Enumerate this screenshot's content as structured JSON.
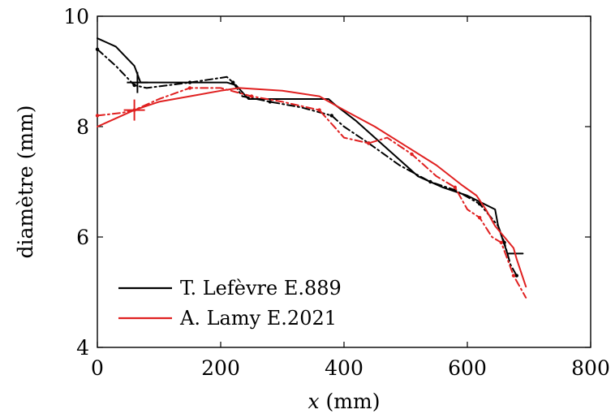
{
  "chart_data": {
    "type": "line",
    "title": "",
    "xlabel_var": "x",
    "xlabel_unit": " (mm)",
    "ylabel": "diamètre (mm)",
    "xlim": [
      0,
      800
    ],
    "ylim": [
      4,
      10
    ],
    "xticks": [
      0,
      200,
      400,
      600,
      800
    ],
    "yticks": [
      4,
      6,
      8,
      10
    ],
    "xtick_labels": [
      "0",
      "200",
      "400",
      "600",
      "800"
    ],
    "ytick_labels": [
      "4",
      "6",
      "8",
      "10"
    ],
    "grid": false,
    "legend": {
      "placement": "bottom-left"
    },
    "series": [
      {
        "name": "T. Lefèvre E.889",
        "color": "#000000",
        "style": "solid",
        "legend": true,
        "points": [
          [
            0,
            9.6
          ],
          [
            30,
            9.45
          ],
          [
            60,
            9.1
          ],
          [
            70,
            8.8
          ],
          [
            80,
            8.8
          ],
          [
            150,
            8.8
          ],
          [
            210,
            8.8
          ],
          [
            225,
            8.75
          ],
          [
            245,
            8.5
          ],
          [
            300,
            8.5
          ],
          [
            375,
            8.5
          ],
          [
            385,
            8.4
          ],
          [
            420,
            8.1
          ],
          [
            480,
            7.5
          ],
          [
            520,
            7.1
          ],
          [
            560,
            6.9
          ],
          [
            600,
            6.75
          ],
          [
            645,
            6.5
          ],
          [
            650,
            6.2
          ],
          [
            665,
            5.7
          ],
          [
            675,
            5.7
          ],
          [
            690,
            5.7
          ]
        ]
      },
      {
        "name": "T. Lefèvre E.889 (pointillés)",
        "color": "#000000",
        "style": "dashdot",
        "legend": false,
        "points": [
          [
            0,
            9.4
          ],
          [
            30,
            9.1
          ],
          [
            60,
            8.75
          ],
          [
            80,
            8.7
          ],
          [
            150,
            8.8
          ],
          [
            210,
            8.9
          ],
          [
            220,
            8.8
          ],
          [
            235,
            8.55
          ],
          [
            280,
            8.45
          ],
          [
            330,
            8.35
          ],
          [
            380,
            8.2
          ],
          [
            400,
            8.0
          ],
          [
            440,
            7.7
          ],
          [
            490,
            7.3
          ],
          [
            540,
            7.0
          ],
          [
            580,
            6.85
          ],
          [
            620,
            6.6
          ],
          [
            650,
            6.2
          ],
          [
            660,
            5.9
          ],
          [
            670,
            5.5
          ],
          [
            680,
            5.3
          ]
        ]
      },
      {
        "name": "A. Lamy E.2021",
        "color": "#e02020",
        "style": "solid",
        "legend": true,
        "points": [
          [
            0,
            8.0
          ],
          [
            30,
            8.15
          ],
          [
            60,
            8.3
          ],
          [
            100,
            8.45
          ],
          [
            150,
            8.55
          ],
          [
            200,
            8.65
          ],
          [
            230,
            8.7
          ],
          [
            300,
            8.65
          ],
          [
            360,
            8.55
          ],
          [
            400,
            8.3
          ],
          [
            450,
            8.0
          ],
          [
            500,
            7.65
          ],
          [
            550,
            7.3
          ],
          [
            590,
            6.95
          ],
          [
            615,
            6.75
          ],
          [
            630,
            6.5
          ],
          [
            645,
            6.2
          ],
          [
            660,
            6.0
          ],
          [
            675,
            5.8
          ],
          [
            680,
            5.6
          ],
          [
            695,
            5.1
          ]
        ]
      },
      {
        "name": "A. Lamy E.2021 (pointillés)",
        "color": "#e02020",
        "style": "dashdot",
        "legend": false,
        "points": [
          [
            0,
            8.2
          ],
          [
            40,
            8.25
          ],
          [
            60,
            8.3
          ],
          [
            100,
            8.5
          ],
          [
            150,
            8.7
          ],
          [
            200,
            8.7
          ],
          [
            250,
            8.55
          ],
          [
            300,
            8.45
          ],
          [
            360,
            8.3
          ],
          [
            400,
            7.8
          ],
          [
            440,
            7.7
          ],
          [
            470,
            7.8
          ],
          [
            510,
            7.5
          ],
          [
            550,
            7.1
          ],
          [
            580,
            6.9
          ],
          [
            600,
            6.5
          ],
          [
            620,
            6.35
          ],
          [
            640,
            6.0
          ],
          [
            655,
            5.9
          ],
          [
            665,
            5.6
          ],
          [
            675,
            5.3
          ],
          [
            695,
            4.9
          ]
        ]
      }
    ],
    "markers": [
      {
        "name": "T. Lefèvre E.889",
        "x": 65,
        "y": 8.8,
        "color": "#000000"
      },
      {
        "name": "A. Lamy E.2021",
        "x": 60,
        "y": 8.3,
        "color": "#e02020"
      }
    ]
  }
}
